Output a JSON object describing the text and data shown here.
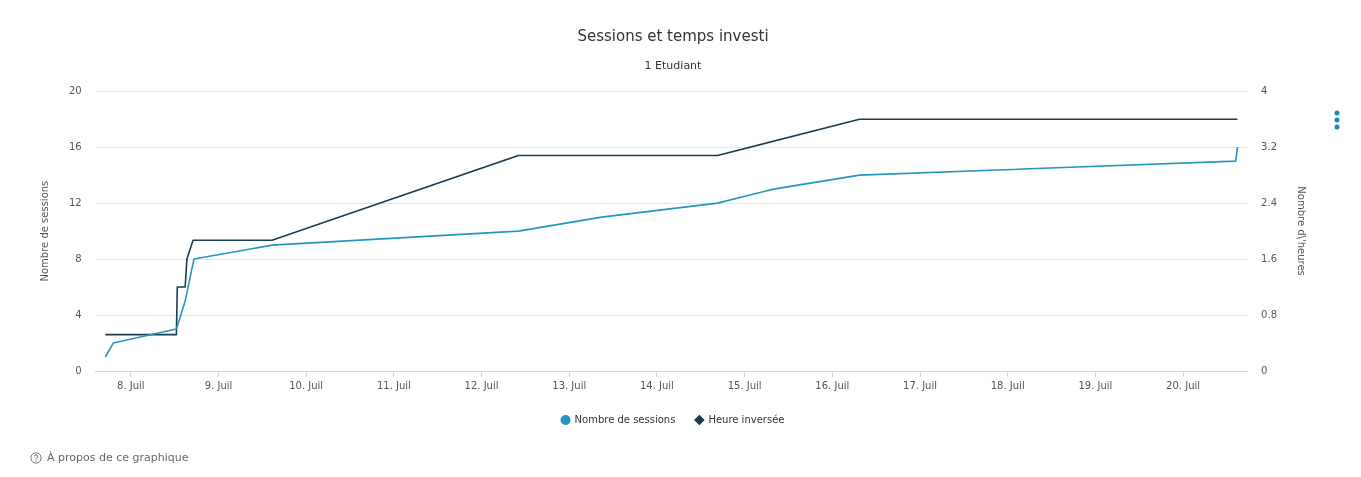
{
  "chart_data": {
    "type": "line",
    "title": "Sessions et temps investi",
    "subtitle": "1 Etudiant",
    "ylabel": "Nombre de sessions",
    "y2label": "Nombre d\\'heures",
    "xlim": [
      7.6,
      20.73
    ],
    "xticks": [
      {
        "value": 8,
        "label": "8. Juil"
      },
      {
        "value": 9,
        "label": "9. Juil"
      },
      {
        "value": 10,
        "label": "10. Juil"
      },
      {
        "value": 11,
        "label": "11. Juil"
      },
      {
        "value": 12,
        "label": "12. Juil"
      },
      {
        "value": 13,
        "label": "13. Juil"
      },
      {
        "value": 14,
        "label": "14. Juil"
      },
      {
        "value": 15,
        "label": "15. Juil"
      },
      {
        "value": 16,
        "label": "16. Juil"
      },
      {
        "value": 17,
        "label": "17. Juil"
      },
      {
        "value": 18,
        "label": "18. Juil"
      },
      {
        "value": 19,
        "label": "19. Juil"
      },
      {
        "value": 20,
        "label": "20. Juil"
      }
    ],
    "ylim": [
      0,
      20
    ],
    "yticks": [
      0,
      4,
      8,
      12,
      16,
      20
    ],
    "y2lim": [
      0,
      4
    ],
    "y2ticks": [
      0,
      0.8,
      1.6,
      2.4,
      3.2,
      4
    ],
    "grid": "y",
    "legend": "bottom",
    "marker": "none",
    "line_style": "solid",
    "series": [
      {
        "name": "Nombre de sessions",
        "color": "#2596be",
        "x": [
          7.71,
          7.8,
          8.52,
          8.62,
          8.72,
          9.61,
          12.42,
          13.37,
          14.69,
          15.33,
          16.31,
          20.6,
          20.62
        ],
        "values": [
          1,
          2,
          3,
          5,
          8,
          9,
          10,
          11,
          12,
          13,
          14,
          15,
          16
        ]
      },
      {
        "name": "Heure inversée",
        "color": "#1b3d4f",
        "axis": "y2",
        "x": [
          7.71,
          8.52,
          8.53,
          8.62,
          8.64,
          8.71,
          9.61,
          12.42,
          14.69,
          16.31,
          20.62
        ],
        "values": [
          0.52,
          0.52,
          1.2,
          1.2,
          1.6,
          1.87,
          1.87,
          3.08,
          3.08,
          3.6,
          3.6
        ]
      }
    ],
    "annotations": [
      "À propos de ce graphique"
    ]
  }
}
